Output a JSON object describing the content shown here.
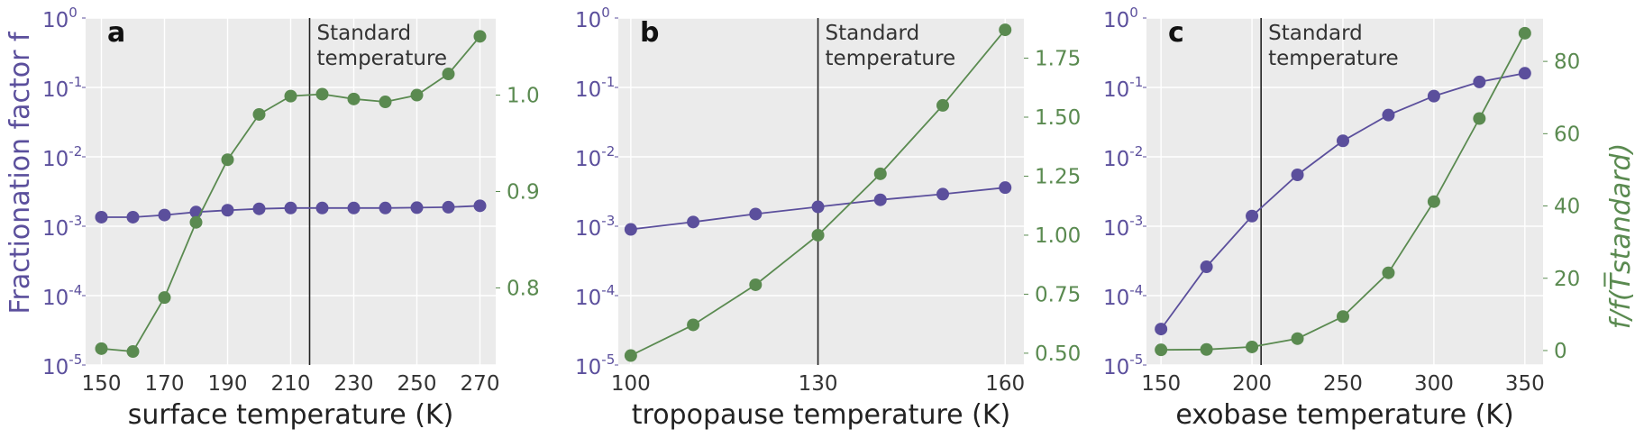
{
  "figure": {
    "left_axis_label": "Fractionation factor f",
    "right_axis_label": "f/f(T̅standard)",
    "colors": {
      "purple": "#5b4f9c",
      "green": "#5a8a50",
      "background": "#ebebeb",
      "vline": "#222222"
    }
  },
  "chart_data": [
    {
      "type": "line",
      "panel": "a",
      "xlabel": "surface temperature (K)",
      "x_ticks": [
        150,
        170,
        190,
        210,
        230,
        250,
        270
      ],
      "xlim": [
        145,
        275
      ],
      "vline": {
        "x": 216,
        "label_line1": "Standard",
        "label_line2": "temperature"
      },
      "y_left": {
        "scale": "log",
        "lim": [
          1e-05,
          1
        ],
        "ticks": [
          {
            "base": "10",
            "exp": "-5"
          },
          {
            "base": "10",
            "exp": "-4"
          },
          {
            "base": "10",
            "exp": "-3"
          },
          {
            "base": "10",
            "exp": "-2"
          },
          {
            "base": "10",
            "exp": "-1"
          },
          {
            "base": "10",
            "exp": "0"
          }
        ]
      },
      "y_right": {
        "lim": [
          0.72,
          1.08
        ],
        "ticks": [
          0.8,
          0.9,
          1.0
        ],
        "tick_labels": [
          "0.8",
          "0.9",
          "1.0"
        ]
      },
      "series": [
        {
          "axis": "left",
          "color": "#5b4f9c",
          "x": [
            150,
            160,
            170,
            180,
            190,
            200,
            210,
            220,
            230,
            240,
            250,
            260,
            270
          ],
          "y": [
            0.00135,
            0.00135,
            0.00145,
            0.0016,
            0.0017,
            0.00178,
            0.00183,
            0.00183,
            0.00183,
            0.00183,
            0.00185,
            0.00188,
            0.00197
          ]
        },
        {
          "axis": "right",
          "color": "#5a8a50",
          "x": [
            150,
            160,
            170,
            180,
            190,
            200,
            210,
            220,
            230,
            240,
            250,
            260,
            270
          ],
          "y": [
            0.737,
            0.734,
            0.79,
            0.868,
            0.933,
            0.98,
            0.999,
            1.001,
            0.996,
            0.993,
            1.0,
            1.022,
            1.061
          ]
        }
      ]
    },
    {
      "type": "line",
      "panel": "b",
      "xlabel": "tropopause temperature (K)",
      "x_ticks": [
        100,
        130,
        160
      ],
      "xlim": [
        98,
        163
      ],
      "vline": {
        "x": 130,
        "label_line1": "Standard",
        "label_line2": "temperature"
      },
      "y_left": {
        "scale": "log",
        "lim": [
          1e-05,
          1
        ],
        "ticks": [
          {
            "base": "10",
            "exp": "-5"
          },
          {
            "base": "10",
            "exp": "-4"
          },
          {
            "base": "10",
            "exp": "-3"
          },
          {
            "base": "10",
            "exp": "-2"
          },
          {
            "base": "10",
            "exp": "-1"
          },
          {
            "base": "10",
            "exp": "0"
          }
        ]
      },
      "y_right": {
        "lim": [
          0.45,
          1.92
        ],
        "ticks": [
          0.5,
          0.75,
          1.0,
          1.25,
          1.5,
          1.75
        ],
        "tick_labels": [
          "0.50",
          "0.75",
          "1.00",
          "1.25",
          "1.50",
          "1.75"
        ]
      },
      "series": [
        {
          "axis": "left",
          "color": "#5b4f9c",
          "x": [
            100,
            110,
            120,
            130,
            140,
            150,
            160
          ],
          "y": [
            0.0009,
            0.00115,
            0.0015,
            0.0019,
            0.0024,
            0.0029,
            0.0036
          ]
        },
        {
          "axis": "right",
          "color": "#5a8a50",
          "x": [
            100,
            110,
            120,
            130,
            140,
            150,
            160
          ],
          "y": [
            0.49,
            0.62,
            0.79,
            1.0,
            1.26,
            1.55,
            1.87
          ]
        }
      ]
    },
    {
      "type": "line",
      "panel": "c",
      "xlabel": "exobase temperature (K)",
      "x_ticks": [
        150,
        200,
        250,
        300,
        350
      ],
      "xlim": [
        142,
        360
      ],
      "vline": {
        "x": 205,
        "label_line1": "Standard",
        "label_line2": "temperature"
      },
      "y_left": {
        "scale": "log",
        "lim": [
          1e-05,
          1
        ],
        "ticks": [
          {
            "base": "10",
            "exp": "-5"
          },
          {
            "base": "10",
            "exp": "-4"
          },
          {
            "base": "10",
            "exp": "-3"
          },
          {
            "base": "10",
            "exp": "-2"
          },
          {
            "base": "10",
            "exp": "-1"
          },
          {
            "base": "10",
            "exp": "0"
          }
        ]
      },
      "y_right": {
        "lim": [
          -4,
          92
        ],
        "ticks": [
          0,
          20,
          40,
          60,
          80
        ],
        "tick_labels": [
          "0",
          "20",
          "40",
          "60",
          "80"
        ]
      },
      "series": [
        {
          "axis": "left",
          "color": "#5b4f9c",
          "x": [
            150,
            175,
            200,
            225,
            250,
            275,
            300,
            325,
            350
          ],
          "y": [
            3.3e-05,
            0.00026,
            0.0014,
            0.0055,
            0.017,
            0.04,
            0.075,
            0.12,
            0.16
          ]
        },
        {
          "axis": "right",
          "color": "#5a8a50",
          "x": [
            150,
            175,
            200,
            225,
            250,
            275,
            300,
            325,
            350
          ],
          "y": [
            0.2,
            0.3,
            1.0,
            3.3,
            9.4,
            21.5,
            41.2,
            64.2,
            87.8
          ]
        }
      ]
    }
  ]
}
